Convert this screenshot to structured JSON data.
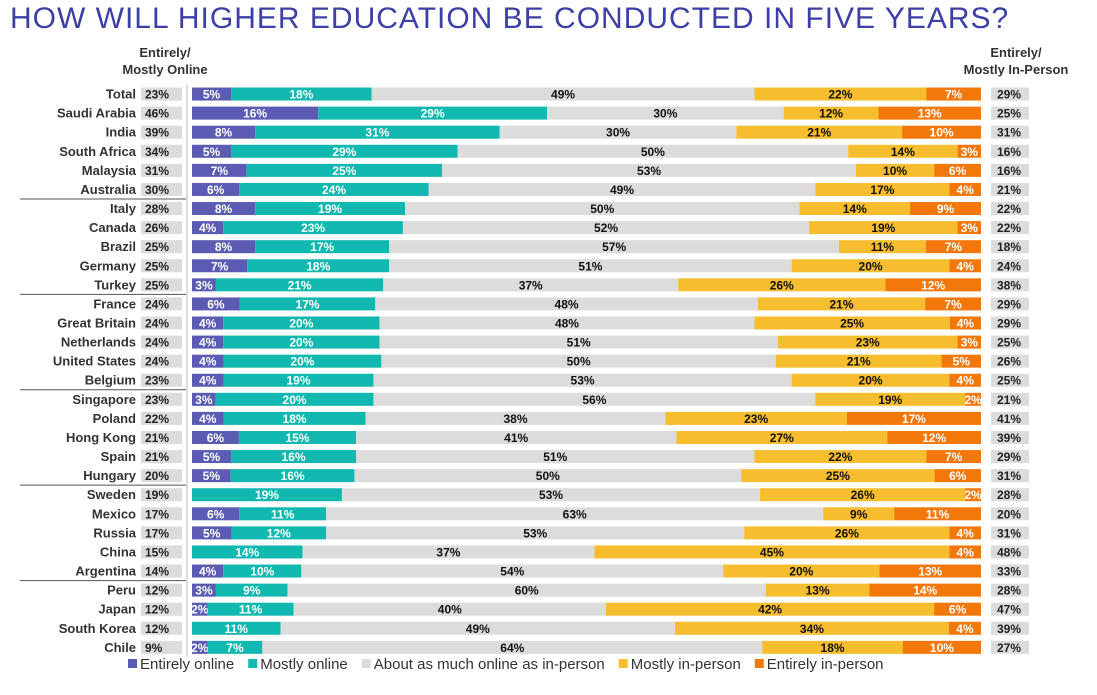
{
  "title": "HOW WILL HIGHER EDUCATION BE CONDUCTED IN FIVE YEARS?",
  "headers": {
    "left": [
      "Entirely/",
      "Mostly Online"
    ],
    "right": [
      "Entirely/",
      "Mostly In-Person"
    ]
  },
  "colors": {
    "entirely_online": "#5b5bb4",
    "mostly_online": "#11b8b0",
    "about_same": "#dcdcdc",
    "mostly_in_person": "#f6bd2e",
    "entirely_in_person": "#f2780c",
    "total_box": "#dcdcdc"
  },
  "chart_data": {
    "type": "bar",
    "stacked": true,
    "orientation": "horizontal",
    "categories": [
      "Total",
      "Saudi Arabia",
      "India",
      "South Africa",
      "Malaysia",
      "Australia",
      "Italy",
      "Canada",
      "Brazil",
      "Germany",
      "Turkey",
      "France",
      "Great Britain",
      "Netherlands",
      "United States",
      "Belgium",
      "Singapore",
      "Poland",
      "Hong Kong",
      "Spain",
      "Hungary",
      "Sweden",
      "Mexico",
      "Russia",
      "China",
      "Argentina",
      "Peru",
      "Japan",
      "South Korea",
      "Chile"
    ],
    "series": [
      {
        "name": "Entirely online",
        "values": [
          5,
          16,
          8,
          5,
          7,
          6,
          8,
          4,
          8,
          7,
          3,
          6,
          4,
          4,
          4,
          4,
          3,
          4,
          6,
          5,
          5,
          0,
          6,
          5,
          0,
          4,
          3,
          2,
          0,
          2
        ]
      },
      {
        "name": "Mostly online",
        "values": [
          18,
          29,
          31,
          29,
          25,
          24,
          19,
          23,
          17,
          18,
          21,
          17,
          20,
          20,
          20,
          19,
          20,
          18,
          15,
          16,
          16,
          19,
          11,
          12,
          14,
          10,
          9,
          11,
          11,
          7
        ]
      },
      {
        "name": "About as much online as in-person",
        "values": [
          49,
          30,
          30,
          50,
          53,
          49,
          50,
          52,
          57,
          51,
          37,
          48,
          48,
          51,
          50,
          53,
          56,
          38,
          41,
          51,
          50,
          53,
          63,
          53,
          37,
          54,
          60,
          40,
          49,
          64
        ]
      },
      {
        "name": "Mostly in-person",
        "values": [
          22,
          12,
          21,
          14,
          10,
          17,
          14,
          19,
          11,
          20,
          26,
          21,
          25,
          23,
          21,
          20,
          19,
          23,
          27,
          22,
          25,
          26,
          9,
          26,
          45,
          20,
          13,
          42,
          34,
          18
        ]
      },
      {
        "name": "Entirely in-person",
        "values": [
          7,
          13,
          10,
          3,
          6,
          4,
          9,
          3,
          7,
          4,
          12,
          7,
          4,
          3,
          5,
          4,
          2,
          17,
          12,
          7,
          6,
          2,
          11,
          4,
          4,
          13,
          14,
          6,
          4,
          10
        ]
      }
    ],
    "value_labels": [
      [
        "5%",
        "18%",
        "49%",
        "22%",
        "7%"
      ],
      [
        "16%",
        "29%",
        "30%",
        "12%",
        "13%"
      ],
      [
        "8%",
        "31%",
        "30%",
        "21%",
        "10%"
      ],
      [
        "5%",
        "29%",
        "50%",
        "14%",
        "3%"
      ],
      [
        "7%",
        "25%",
        "53%",
        "10%",
        "6%"
      ],
      [
        "6%",
        "24%",
        "49%",
        "17%",
        "4%"
      ],
      [
        "8%",
        "19%",
        "50%",
        "14%",
        "9%"
      ],
      [
        "4%",
        "23%",
        "52%",
        "19%",
        "3%"
      ],
      [
        "8%",
        "17%",
        "57%",
        "11%",
        "7%"
      ],
      [
        "7%",
        "18%",
        "51%",
        "20%",
        "4%"
      ],
      [
        "3%",
        "21%",
        "37%",
        "26%",
        "12%"
      ],
      [
        "6%",
        "17%",
        "48%",
        "21%",
        "7%"
      ],
      [
        "4%",
        "20%",
        "48%",
        "25%",
        "4%"
      ],
      [
        "4%",
        "20%",
        "51%",
        "23%",
        "3%"
      ],
      [
        "4%",
        "20%",
        "50%",
        "21%",
        "5%"
      ],
      [
        "4%",
        "19%",
        "53%",
        "20%",
        "4%"
      ],
      [
        "3%",
        "20%",
        "56%",
        "19%",
        "2%"
      ],
      [
        "4%",
        "18%",
        "38%",
        "23%",
        "17%"
      ],
      [
        "6%",
        "15%",
        "41%",
        "27%",
        "12%"
      ],
      [
        "5%",
        "16%",
        "51%",
        "22%",
        "7%"
      ],
      [
        "5%",
        "16%",
        "50%",
        "25%",
        "6%"
      ],
      [
        "%",
        "19%",
        "53%",
        "26%",
        "2%"
      ],
      [
        "6%",
        "11%",
        "63%",
        "9%",
        "11%"
      ],
      [
        "5%",
        "12%",
        "53%",
        "26%",
        "4%"
      ],
      [
        "%",
        "14%",
        "37%",
        "45%",
        "4%"
      ],
      [
        "4%",
        "10%",
        "54%",
        "20%",
        "13%"
      ],
      [
        "3%",
        "9%",
        "60%",
        "13%",
        "14%"
      ],
      [
        "2%",
        "11%",
        "40%",
        "42%",
        "6%"
      ],
      [
        "%",
        "11%",
        "49%",
        "34%",
        "4%"
      ],
      [
        "2%",
        "7%",
        "64%",
        "18%",
        "10%"
      ]
    ],
    "online_totals": [
      "23%",
      "46%",
      "39%",
      "34%",
      "31%",
      "30%",
      "28%",
      "26%",
      "25%",
      "25%",
      "25%",
      "24%",
      "24%",
      "24%",
      "24%",
      "23%",
      "23%",
      "22%",
      "21%",
      "21%",
      "20%",
      "19%",
      "17%",
      "17%",
      "15%",
      "14%",
      "12%",
      "12%",
      "12%",
      "9%"
    ],
    "inperson_totals": [
      "29%",
      "25%",
      "31%",
      "16%",
      "16%",
      "21%",
      "22%",
      "22%",
      "18%",
      "24%",
      "38%",
      "29%",
      "29%",
      "25%",
      "26%",
      "25%",
      "21%",
      "41%",
      "39%",
      "29%",
      "31%",
      "28%",
      "20%",
      "31%",
      "48%",
      "33%",
      "28%",
      "47%",
      "39%",
      "27%"
    ],
    "legend": [
      "Entirely online",
      "Mostly online",
      "About as much online as in-person",
      "Mostly in-person",
      "Entirely in-person"
    ],
    "legend_position": "bottom"
  }
}
